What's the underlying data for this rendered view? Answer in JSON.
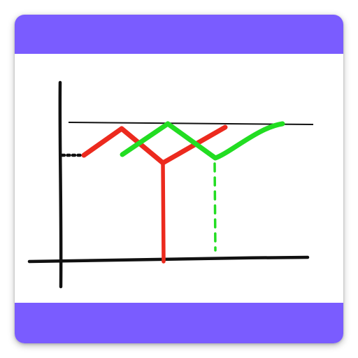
{
  "icon": {
    "name": "chart-trend-app-icon",
    "colors": {
      "band": "#7a5cff",
      "background": "#ffffff",
      "axis": "#111111",
      "line_red": "#ec2a1e",
      "line_green": "#22dd22"
    }
  }
}
